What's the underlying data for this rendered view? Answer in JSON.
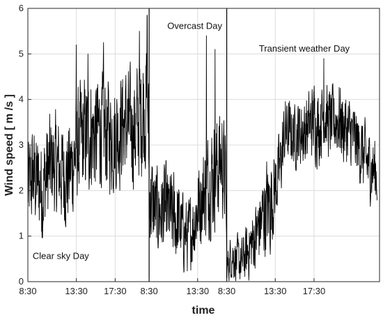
{
  "chart_data": {
    "type": "line",
    "title": "",
    "xlabel": "time",
    "ylabel": "Wind speed [ m /s ]",
    "ylim": [
      0,
      6
    ],
    "yticks": [
      "0",
      "1",
      "2",
      "3",
      "4",
      "5",
      "6"
    ],
    "grid": true,
    "legend": "none",
    "line_color": "#000000",
    "x_unit": "hours elapsed from first 8:30",
    "xlim": [
      0,
      36.25
    ],
    "xticks": [
      {
        "x": 0,
        "label": "8:30"
      },
      {
        "x": 5,
        "label": "13:30"
      },
      {
        "x": 9,
        "label": "17:30"
      },
      {
        "x": 12.5,
        "label": "8:30"
      },
      {
        "x": 17.5,
        "label": "13:30"
      },
      {
        "x": 20.5,
        "label": "8:30"
      },
      {
        "x": 25.5,
        "label": "13:30"
      },
      {
        "x": 29.5,
        "label": "17:30"
      }
    ],
    "day_separators": [
      12.5,
      20.5
    ],
    "annotations": [
      {
        "text": "Clear sky Day",
        "x": 3.4,
        "y": 0.5
      },
      {
        "text": "Overcast Day",
        "x": 17.2,
        "y": 5.55
      },
      {
        "text": "Transient weather Day",
        "x": 28.5,
        "y": 5.05
      }
    ],
    "series": [
      {
        "name": "",
        "x": [
          0.0,
          0.5,
          1.0,
          1.5,
          2.0,
          2.5,
          3.0,
          3.5,
          4.0,
          4.5,
          5.0,
          5.5,
          6.0,
          6.5,
          7.0,
          7.5,
          8.0,
          8.5,
          9.0,
          9.5,
          10.0,
          10.5,
          11.0,
          11.5,
          12.0,
          12.4,
          12.5,
          13.0,
          13.5,
          14.0,
          14.5,
          15.0,
          15.5,
          16.0,
          16.5,
          17.0,
          17.5,
          18.0,
          18.5,
          19.0,
          19.5,
          20.0,
          20.4,
          20.5,
          21.0,
          21.5,
          22.0,
          22.5,
          23.0,
          23.5,
          24.0,
          24.5,
          25.0,
          25.5,
          26.0,
          26.5,
          27.0,
          27.5,
          28.0,
          28.5,
          29.0,
          29.5,
          30.0,
          30.5,
          31.0,
          31.5,
          32.0,
          32.5,
          33.0,
          33.5,
          34.0,
          34.5,
          35.0,
          35.5,
          36.0
        ],
        "mean": [
          2.0,
          2.3,
          2.2,
          2.0,
          2.4,
          2.6,
          2.5,
          2.4,
          2.3,
          2.5,
          2.9,
          3.1,
          3.2,
          3.3,
          3.2,
          3.4,
          3.3,
          3.2,
          3.2,
          3.4,
          3.5,
          3.4,
          3.3,
          3.6,
          3.9,
          3.8,
          1.9,
          1.6,
          1.5,
          1.6,
          1.5,
          1.4,
          1.3,
          1.1,
          1.0,
          1.2,
          1.6,
          1.9,
          2.1,
          2.3,
          2.5,
          2.7,
          2.2,
          0.3,
          0.6,
          0.5,
          0.4,
          0.6,
          0.8,
          1.0,
          1.3,
          1.6,
          1.7,
          2.1,
          2.5,
          3.3,
          3.3,
          3.2,
          3.3,
          3.3,
          3.4,
          3.6,
          3.4,
          3.7,
          3.5,
          3.5,
          3.6,
          3.4,
          3.3,
          3.2,
          3.0,
          2.8,
          2.6,
          2.5,
          2.4
        ],
        "amp": [
          1.3,
          1.3,
          1.2,
          1.4,
          1.4,
          1.3,
          1.3,
          1.3,
          1.3,
          1.4,
          1.4,
          1.5,
          1.5,
          1.5,
          1.5,
          1.5,
          1.5,
          1.4,
          1.5,
          1.5,
          1.4,
          1.4,
          1.5,
          1.6,
          1.7,
          1.7,
          1.3,
          1.2,
          1.1,
          1.2,
          1.1,
          1.2,
          1.1,
          1.0,
          0.9,
          1.0,
          1.1,
          1.2,
          1.3,
          1.4,
          1.4,
          1.4,
          1.2,
          0.4,
          0.6,
          0.6,
          0.6,
          0.7,
          0.8,
          0.9,
          1.0,
          1.2,
          1.3,
          1.0,
          0.9,
          0.9,
          0.8,
          0.8,
          0.9,
          0.9,
          0.9,
          1.0,
          1.0,
          0.9,
          0.9,
          0.9,
          1.0,
          1.0,
          0.9,
          0.9,
          0.9,
          0.9,
          0.9,
          0.9,
          0.9
        ],
        "peaks": [
          {
            "x": 5.0,
            "y": 5.2
          },
          {
            "x": 6.2,
            "y": 5.0
          },
          {
            "x": 7.8,
            "y": 5.25
          },
          {
            "x": 11.5,
            "y": 5.5
          },
          {
            "x": 12.3,
            "y": 5.85
          },
          {
            "x": 18.4,
            "y": 5.4
          },
          {
            "x": 19.3,
            "y": 5.1
          },
          {
            "x": 30.5,
            "y": 4.9
          }
        ]
      }
    ]
  }
}
